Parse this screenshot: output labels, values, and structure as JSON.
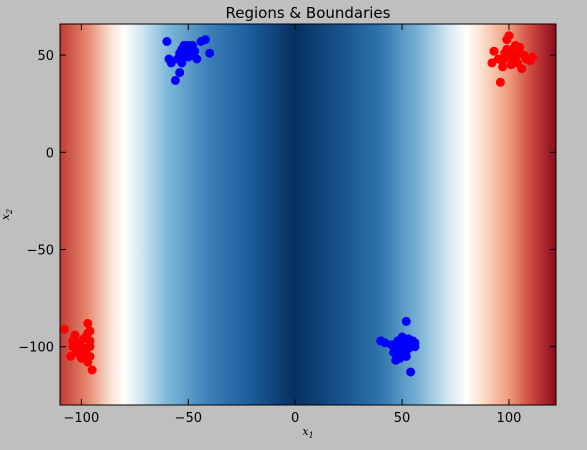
{
  "chart_data": {
    "type": "scatter",
    "title": "Regions & Boundaries",
    "xlabel": "x_1",
    "ylabel": "x_2",
    "xlabel_sub": "1",
    "ylabel_sub": "2",
    "xlim": [
      -110,
      122
    ],
    "ylim": [
      -130,
      66
    ],
    "xticks": [
      -100,
      -50,
      0,
      50,
      100
    ],
    "yticks": [
      50,
      0,
      -50,
      -100
    ],
    "grid": false,
    "background": {
      "type": "heatmap",
      "colormap": "RdBu",
      "description_stops": [
        {
          "x": -110,
          "color": "#c23a35"
        },
        {
          "x": -97,
          "color": "#e58a6f"
        },
        {
          "x": -86,
          "color": "#fbe3d6"
        },
        {
          "x": -80,
          "color": "#ffffff"
        },
        {
          "x": -72,
          "color": "#d4e6f1"
        },
        {
          "x": -60,
          "color": "#7fb8d9"
        },
        {
          "x": -40,
          "color": "#3b7fb8"
        },
        {
          "x": -20,
          "color": "#1a5a9a"
        },
        {
          "x": 0,
          "color": "#06305f"
        },
        {
          "x": 20,
          "color": "#174f8c"
        },
        {
          "x": 40,
          "color": "#3075ad"
        },
        {
          "x": 58,
          "color": "#7bb3d6"
        },
        {
          "x": 72,
          "color": "#d6e8f2"
        },
        {
          "x": 80,
          "color": "#ffffff"
        },
        {
          "x": 88,
          "color": "#fbdcc9"
        },
        {
          "x": 100,
          "color": "#ef9b7c"
        },
        {
          "x": 110,
          "color": "#cf4a3f"
        },
        {
          "x": 122,
          "color": "#8b0a1d"
        }
      ]
    },
    "series": [
      {
        "color": "#ff0000",
        "points": [
          [
            -108,
            -91
          ],
          [
            -103,
            -94
          ],
          [
            -101,
            -98
          ],
          [
            -99,
            -104
          ],
          [
            -98,
            -103
          ],
          [
            -104,
            -100
          ],
          [
            -105,
            -105
          ],
          [
            -102,
            -103
          ],
          [
            -100,
            -100
          ],
          [
            -97,
            -93
          ],
          [
            -96,
            -97
          ],
          [
            -96,
            -105
          ],
          [
            -97,
            -106
          ],
          [
            -98,
            -101
          ],
          [
            -95,
            -112
          ],
          [
            -96,
            -100
          ],
          [
            -99,
            -96
          ],
          [
            -101,
            -99
          ],
          [
            -103,
            -101
          ],
          [
            -97,
            -88
          ],
          [
            -96,
            -92
          ],
          [
            -104,
            -97
          ],
          [
            -100,
            -106
          ],
          [
            -98,
            -95
          ],
          [
            -97,
            -108
          ],
          [
            92,
            46
          ],
          [
            93,
            52
          ],
          [
            95,
            48
          ],
          [
            97,
            44
          ],
          [
            96,
            36
          ],
          [
            98,
            51
          ],
          [
            99,
            58
          ],
          [
            100,
            60
          ],
          [
            101,
            52
          ],
          [
            102,
            48
          ],
          [
            103,
            55
          ],
          [
            104,
            51
          ],
          [
            104,
            46
          ],
          [
            106,
            43
          ],
          [
            107,
            50
          ],
          [
            108,
            48
          ],
          [
            110,
            47
          ],
          [
            111,
            49
          ],
          [
            100,
            49
          ],
          [
            102,
            53
          ],
          [
            97,
            47
          ],
          [
            105,
            54
          ],
          [
            103,
            49
          ],
          [
            99,
            53
          ],
          [
            101,
            45
          ]
        ]
      },
      {
        "color": "#0000ff",
        "points": [
          [
            -60,
            57
          ],
          [
            -58,
            46
          ],
          [
            -59,
            48
          ],
          [
            -56,
            37
          ],
          [
            -54,
            41
          ],
          [
            -55,
            48
          ],
          [
            -54,
            51
          ],
          [
            -53,
            53
          ],
          [
            -52,
            55
          ],
          [
            -51,
            52
          ],
          [
            -50,
            49
          ],
          [
            -49,
            54
          ],
          [
            -48,
            55
          ],
          [
            -47,
            52
          ],
          [
            -46,
            48
          ],
          [
            -44,
            57
          ],
          [
            -42,
            58
          ],
          [
            -40,
            51
          ],
          [
            -52,
            49
          ],
          [
            -50,
            55
          ],
          [
            -53,
            46
          ],
          [
            -48,
            50
          ],
          [
            40,
            -97
          ],
          [
            42,
            -98
          ],
          [
            45,
            -99
          ],
          [
            47,
            -101
          ],
          [
            47,
            -107
          ],
          [
            48,
            -104
          ],
          [
            49,
            -100
          ],
          [
            50,
            -97
          ],
          [
            50,
            -95
          ],
          [
            51,
            -99
          ],
          [
            51,
            -103
          ],
          [
            52,
            -87
          ],
          [
            52,
            -105
          ],
          [
            53,
            -101
          ],
          [
            54,
            -98
          ],
          [
            54,
            -113
          ],
          [
            55,
            -97
          ],
          [
            56,
            -98
          ],
          [
            56,
            -100
          ],
          [
            48,
            -97
          ],
          [
            52,
            -102
          ],
          [
            49,
            -106
          ],
          [
            53,
            -96
          ],
          [
            46,
            -103
          ]
        ]
      }
    ]
  }
}
